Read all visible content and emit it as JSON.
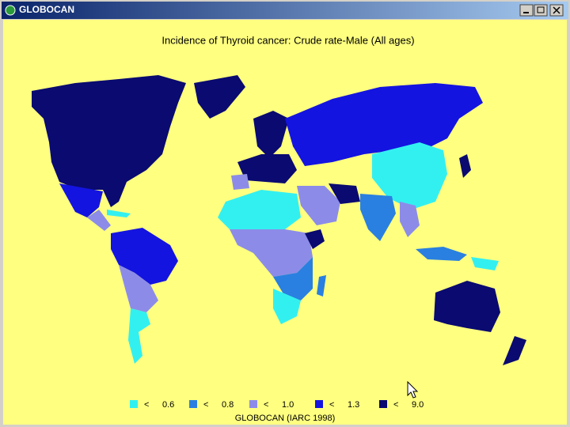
{
  "window": {
    "title": "GLOBOCAN"
  },
  "map": {
    "title": "Incidence of Thyroid cancer: Crude rate-Male (All ages)",
    "legend": [
      {
        "symbol": "<",
        "value": "0.6",
        "color": "#33f0f0"
      },
      {
        "symbol": "<",
        "value": "0.8",
        "color": "#2a80e0"
      },
      {
        "symbol": "<",
        "value": "1.0",
        "color": "#8c8ce8"
      },
      {
        "symbol": "<",
        "value": "1.3",
        "color": "#1414e0"
      },
      {
        "symbol": "<",
        "value": "9.0",
        "color": "#0a0a70"
      }
    ],
    "source": "GLOBOCAN (IARC 1998)"
  }
}
